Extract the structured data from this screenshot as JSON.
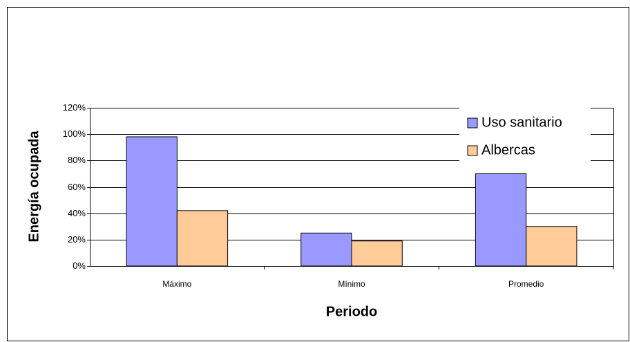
{
  "chart_data": {
    "type": "bar",
    "categories": [
      "Máximo",
      "Mínimo",
      "Promedio"
    ],
    "series": [
      {
        "name": "Uso sanitario",
        "color": "#9999ff",
        "values": [
          98,
          25,
          70
        ]
      },
      {
        "name": "Albercas",
        "color": "#ffcc99",
        "values": [
          42,
          19,
          30
        ]
      }
    ],
    "ylim": [
      0,
      120
    ],
    "yticks": [
      {
        "value": 0,
        "label": "0%"
      },
      {
        "value": 20,
        "label": "20%"
      },
      {
        "value": 40,
        "label": "40%"
      },
      {
        "value": 60,
        "label": "60%"
      },
      {
        "value": 80,
        "label": "80%"
      },
      {
        "value": 100,
        "label": "100%"
      },
      {
        "value": 120,
        "label": "120%"
      }
    ],
    "ylabel": "Energía ocupada",
    "xlabel": "Periodo",
    "grid": true,
    "legend": "upper right"
  }
}
